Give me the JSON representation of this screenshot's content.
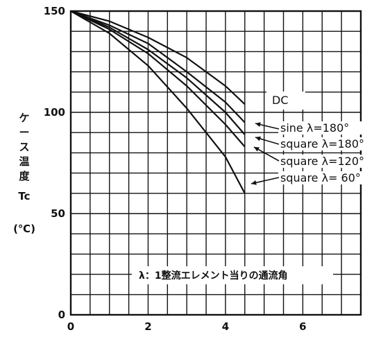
{
  "chart_data": {
    "type": "line",
    "title": "",
    "ylabel_lines": [
      "ケ",
      "ー",
      "ス",
      "温",
      "度",
      "Tc",
      "(℃)"
    ],
    "xlabel": "",
    "xlim": [
      0,
      7.5
    ],
    "ylim": [
      0,
      150
    ],
    "x_ticks": [
      0,
      2,
      4,
      6
    ],
    "y_ticks": [
      0,
      50,
      100,
      150
    ],
    "grid": true,
    "series": [
      {
        "name": "DC",
        "x": [
          0,
          1,
          2,
          3,
          4,
          4.5
        ],
        "y": [
          150,
          145,
          137,
          127,
          113,
          104
        ]
      },
      {
        "name": "sine λ=180°",
        "x": [
          0,
          1,
          2,
          3,
          4,
          4.5
        ],
        "y": [
          150,
          143,
          134,
          120,
          105,
          95
        ]
      },
      {
        "name": "square λ=180°",
        "x": [
          0,
          1,
          2,
          3,
          4,
          4.5
        ],
        "y": [
          150,
          142,
          131,
          117,
          100,
          89
        ]
      },
      {
        "name": "square λ=120°",
        "x": [
          0,
          1,
          2,
          3,
          4,
          4.5
        ],
        "y": [
          150,
          141,
          129,
          113,
          94,
          83
        ]
      },
      {
        "name": "square λ= 60°",
        "x": [
          0,
          1,
          2,
          3,
          4,
          4.5
        ],
        "y": [
          150,
          139,
          123,
          102,
          78,
          60
        ]
      }
    ],
    "annotation": "λ：1整流エレメント当りの通流角"
  }
}
